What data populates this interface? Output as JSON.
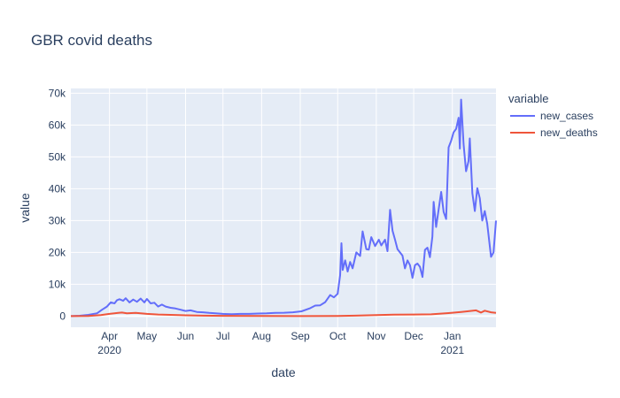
{
  "chart_data": {
    "type": "line",
    "title": "GBR covid deaths",
    "xlabel": "date",
    "ylabel": "value",
    "x_axis": {
      "range": [
        "2020-03-01",
        "2021-02-05"
      ],
      "ticks": [
        {
          "date": "2020-04-01",
          "label": "Apr",
          "sublabel": "2020"
        },
        {
          "date": "2020-05-01",
          "label": "May",
          "sublabel": ""
        },
        {
          "date": "2020-06-01",
          "label": "Jun",
          "sublabel": ""
        },
        {
          "date": "2020-07-01",
          "label": "Jul",
          "sublabel": ""
        },
        {
          "date": "2020-08-01",
          "label": "Aug",
          "sublabel": ""
        },
        {
          "date": "2020-09-01",
          "label": "Sep",
          "sublabel": ""
        },
        {
          "date": "2020-10-01",
          "label": "Oct",
          "sublabel": ""
        },
        {
          "date": "2020-11-01",
          "label": "Nov",
          "sublabel": ""
        },
        {
          "date": "2020-12-01",
          "label": "Dec",
          "sublabel": ""
        },
        {
          "date": "2021-01-01",
          "label": "Jan",
          "sublabel": "2021"
        }
      ]
    },
    "y_axis": {
      "range": [
        -3500,
        71500
      ],
      "ticks": [
        {
          "value": 0,
          "label": "0"
        },
        {
          "value": 10000,
          "label": "10k"
        },
        {
          "value": 20000,
          "label": "20k"
        },
        {
          "value": 30000,
          "label": "30k"
        },
        {
          "value": 40000,
          "label": "40k"
        },
        {
          "value": 50000,
          "label": "50k"
        },
        {
          "value": 60000,
          "label": "60k"
        },
        {
          "value": 70000,
          "label": "70k"
        }
      ]
    },
    "grid": true,
    "legend": {
      "title": "variable",
      "placement": "right"
    },
    "series": [
      {
        "name": "new_cases",
        "color": "#636efa",
        "points": [
          [
            "2020-03-01",
            0
          ],
          [
            "2020-03-08",
            100
          ],
          [
            "2020-03-15",
            400
          ],
          [
            "2020-03-22",
            900
          ],
          [
            "2020-03-26",
            2000
          ],
          [
            "2020-03-30",
            3000
          ],
          [
            "2020-04-02",
            4300
          ],
          [
            "2020-04-05",
            4000
          ],
          [
            "2020-04-07",
            5000
          ],
          [
            "2020-04-09",
            5300
          ],
          [
            "2020-04-12",
            4800
          ],
          [
            "2020-04-14",
            5600
          ],
          [
            "2020-04-17",
            4300
          ],
          [
            "2020-04-20",
            5200
          ],
          [
            "2020-04-23",
            4500
          ],
          [
            "2020-04-26",
            5500
          ],
          [
            "2020-04-29",
            4300
          ],
          [
            "2020-05-01",
            5400
          ],
          [
            "2020-05-04",
            4000
          ],
          [
            "2020-05-07",
            4200
          ],
          [
            "2020-05-10",
            3000
          ],
          [
            "2020-05-13",
            3600
          ],
          [
            "2020-05-16",
            3000
          ],
          [
            "2020-05-20",
            2600
          ],
          [
            "2020-05-24",
            2400
          ],
          [
            "2020-05-28",
            2000
          ],
          [
            "2020-06-01",
            1600
          ],
          [
            "2020-06-05",
            1800
          ],
          [
            "2020-06-10",
            1300
          ],
          [
            "2020-06-15",
            1200
          ],
          [
            "2020-06-20",
            1000
          ],
          [
            "2020-06-25",
            900
          ],
          [
            "2020-07-01",
            700
          ],
          [
            "2020-07-08",
            600
          ],
          [
            "2020-07-15",
            700
          ],
          [
            "2020-07-22",
            700
          ],
          [
            "2020-07-29",
            800
          ],
          [
            "2020-08-05",
            850
          ],
          [
            "2020-08-12",
            1000
          ],
          [
            "2020-08-19",
            1050
          ],
          [
            "2020-08-26",
            1200
          ],
          [
            "2020-09-02",
            1500
          ],
          [
            "2020-09-09",
            2500
          ],
          [
            "2020-09-13",
            3300
          ],
          [
            "2020-09-17",
            3400
          ],
          [
            "2020-09-21",
            4400
          ],
          [
            "2020-09-25",
            6600
          ],
          [
            "2020-09-28",
            5900
          ],
          [
            "2020-10-01",
            7000
          ],
          [
            "2020-10-03",
            12800
          ],
          [
            "2020-10-04",
            22900
          ],
          [
            "2020-10-05",
            14500
          ],
          [
            "2020-10-07",
            17500
          ],
          [
            "2020-10-09",
            14000
          ],
          [
            "2020-10-11",
            17000
          ],
          [
            "2020-10-13",
            15000
          ],
          [
            "2020-10-16",
            20000
          ],
          [
            "2020-10-19",
            18900
          ],
          [
            "2020-10-21",
            26600
          ],
          [
            "2020-10-24",
            21000
          ],
          [
            "2020-10-26",
            20900
          ],
          [
            "2020-10-28",
            24800
          ],
          [
            "2020-10-31",
            22000
          ],
          [
            "2020-11-03",
            24000
          ],
          [
            "2020-11-05",
            22200
          ],
          [
            "2020-11-08",
            24000
          ],
          [
            "2020-11-10",
            20400
          ],
          [
            "2020-11-12",
            33400
          ],
          [
            "2020-11-14",
            26800
          ],
          [
            "2020-11-16",
            24000
          ],
          [
            "2020-11-18",
            21000
          ],
          [
            "2020-11-20",
            20000
          ],
          [
            "2020-11-22",
            19000
          ],
          [
            "2020-11-24",
            15000
          ],
          [
            "2020-11-26",
            17500
          ],
          [
            "2020-11-28",
            16000
          ],
          [
            "2020-11-30",
            12000
          ],
          [
            "2020-12-02",
            16000
          ],
          [
            "2020-12-04",
            16500
          ],
          [
            "2020-12-06",
            15500
          ],
          [
            "2020-12-08",
            12300
          ],
          [
            "2020-12-10",
            20800
          ],
          [
            "2020-12-12",
            21500
          ],
          [
            "2020-12-14",
            18500
          ],
          [
            "2020-12-16",
            25000
          ],
          [
            "2020-12-17",
            35900
          ],
          [
            "2020-12-19",
            28000
          ],
          [
            "2020-12-21",
            33400
          ],
          [
            "2020-12-23",
            39000
          ],
          [
            "2020-12-25",
            32700
          ],
          [
            "2020-12-27",
            30500
          ],
          [
            "2020-12-29",
            53000
          ],
          [
            "2020-12-31",
            55000
          ],
          [
            "2021-01-02",
            57700
          ],
          [
            "2021-01-04",
            58800
          ],
          [
            "2021-01-06",
            62300
          ],
          [
            "2021-01-07",
            52600
          ],
          [
            "2021-01-08",
            68000
          ],
          [
            "2021-01-10",
            54000
          ],
          [
            "2021-01-12",
            45500
          ],
          [
            "2021-01-14",
            48700
          ],
          [
            "2021-01-15",
            55800
          ],
          [
            "2021-01-17",
            38600
          ],
          [
            "2021-01-19",
            33000
          ],
          [
            "2021-01-21",
            40200
          ],
          [
            "2021-01-23",
            37000
          ],
          [
            "2021-01-25",
            30000
          ],
          [
            "2021-01-27",
            33000
          ],
          [
            "2021-01-29",
            29000
          ],
          [
            "2021-02-01",
            18600
          ],
          [
            "2021-02-03",
            20000
          ],
          [
            "2021-02-05",
            30000
          ]
        ]
      },
      {
        "name": "new_deaths",
        "color": "#ef553b",
        "points": [
          [
            "2020-03-01",
            0
          ],
          [
            "2020-03-15",
            20
          ],
          [
            "2020-03-25",
            300
          ],
          [
            "2020-04-01",
            700
          ],
          [
            "2020-04-08",
            1000
          ],
          [
            "2020-04-11",
            1100
          ],
          [
            "2020-04-15",
            900
          ],
          [
            "2020-04-22",
            1000
          ],
          [
            "2020-05-01",
            700
          ],
          [
            "2020-05-10",
            500
          ],
          [
            "2020-05-20",
            400
          ],
          [
            "2020-06-01",
            250
          ],
          [
            "2020-06-15",
            150
          ],
          [
            "2020-07-01",
            80
          ],
          [
            "2020-08-01",
            30
          ],
          [
            "2020-09-01",
            10
          ],
          [
            "2020-10-01",
            60
          ],
          [
            "2020-10-15",
            150
          ],
          [
            "2020-11-01",
            300
          ],
          [
            "2020-11-15",
            450
          ],
          [
            "2020-12-01",
            500
          ],
          [
            "2020-12-15",
            550
          ],
          [
            "2020-12-29",
            950
          ],
          [
            "2021-01-08",
            1300
          ],
          [
            "2021-01-13",
            1500
          ],
          [
            "2021-01-20",
            1800
          ],
          [
            "2021-01-24",
            1100
          ],
          [
            "2021-01-27",
            1700
          ],
          [
            "2021-02-01",
            1200
          ],
          [
            "2021-02-05",
            1000
          ]
        ]
      }
    ]
  }
}
